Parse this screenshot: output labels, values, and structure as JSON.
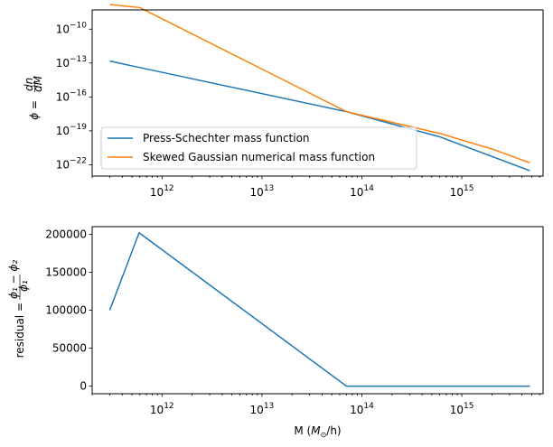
{
  "chart_data": [
    {
      "type": "line",
      "title": "",
      "xscale": "log",
      "yscale": "log",
      "xlim": [
        200000000000.0,
        6500000000000000.0
      ],
      "ylim": [
        1e-23,
        5e-09
      ],
      "xlabel": "",
      "ylabel": "ϕ = dn/dM",
      "xticks": [
        {
          "value": 1000000000000.0,
          "label": "10^12"
        },
        {
          "value": 10000000000000.0,
          "label": "10^13"
        },
        {
          "value": 100000000000000.0,
          "label": "10^14"
        },
        {
          "value": 1000000000000000.0,
          "label": "10^15"
        }
      ],
      "yticks": [
        {
          "value": 1e-10,
          "label": "10^-10"
        },
        {
          "value": 1e-13,
          "label": "10^-13"
        },
        {
          "value": 1e-16,
          "label": "10^-16"
        },
        {
          "value": 1e-19,
          "label": "10^-19"
        },
        {
          "value": 1e-22,
          "label": "10^-22"
        }
      ],
      "legend_position": "lower-left",
      "grid": false,
      "series": [
        {
          "name": "Press-Schechter mass function",
          "color": "#1f77b4",
          "x": [
            300000000000.0,
            600000000000.0,
            70000000000000.0,
            600000000000000.0,
            4800000000000000.0
          ],
          "y": [
            1.5e-13,
            4e-14,
            5e-18,
            3e-20,
            3e-23
          ]
        },
        {
          "name": "Skewed Gaussian numerical mass function",
          "color": "#ff7f0e",
          "x": [
            300000000000.0,
            600000000000.0,
            70000000000000.0,
            600000000000000.0,
            2000000000000000.0,
            4800000000000000.0
          ],
          "y": [
            1.5e-08,
            8e-09,
            5e-18,
            6e-20,
            2.5e-21,
            1.5e-22
          ]
        }
      ]
    },
    {
      "type": "line",
      "title": "",
      "xscale": "log",
      "yscale": "linear",
      "xlim": [
        200000000000.0,
        6500000000000000.0
      ],
      "ylim": [
        -10000,
        210000
      ],
      "xlabel": "M (M_⊙/h)",
      "ylabel": "residual = (ϕ₁ − ϕ₂)/ϕ₁",
      "xticks": [
        {
          "value": 1000000000000.0,
          "label": "10^12"
        },
        {
          "value": 10000000000000.0,
          "label": "10^13"
        },
        {
          "value": 100000000000000.0,
          "label": "10^14"
        },
        {
          "value": 1000000000000000.0,
          "label": "10^15"
        }
      ],
      "yticks": [
        {
          "value": 0,
          "label": "0"
        },
        {
          "value": 50000,
          "label": "50000"
        },
        {
          "value": 100000,
          "label": "100000"
        },
        {
          "value": 150000,
          "label": "150000"
        },
        {
          "value": 200000,
          "label": "200000"
        }
      ],
      "grid": false,
      "series": [
        {
          "color": "#1f77b4",
          "x": [
            300000000000.0,
            590000000000.0,
            70000000000000.0,
            600000000000000.0,
            4800000000000000.0
          ],
          "y": [
            100000,
            202000,
            0,
            0,
            0
          ]
        }
      ]
    }
  ]
}
